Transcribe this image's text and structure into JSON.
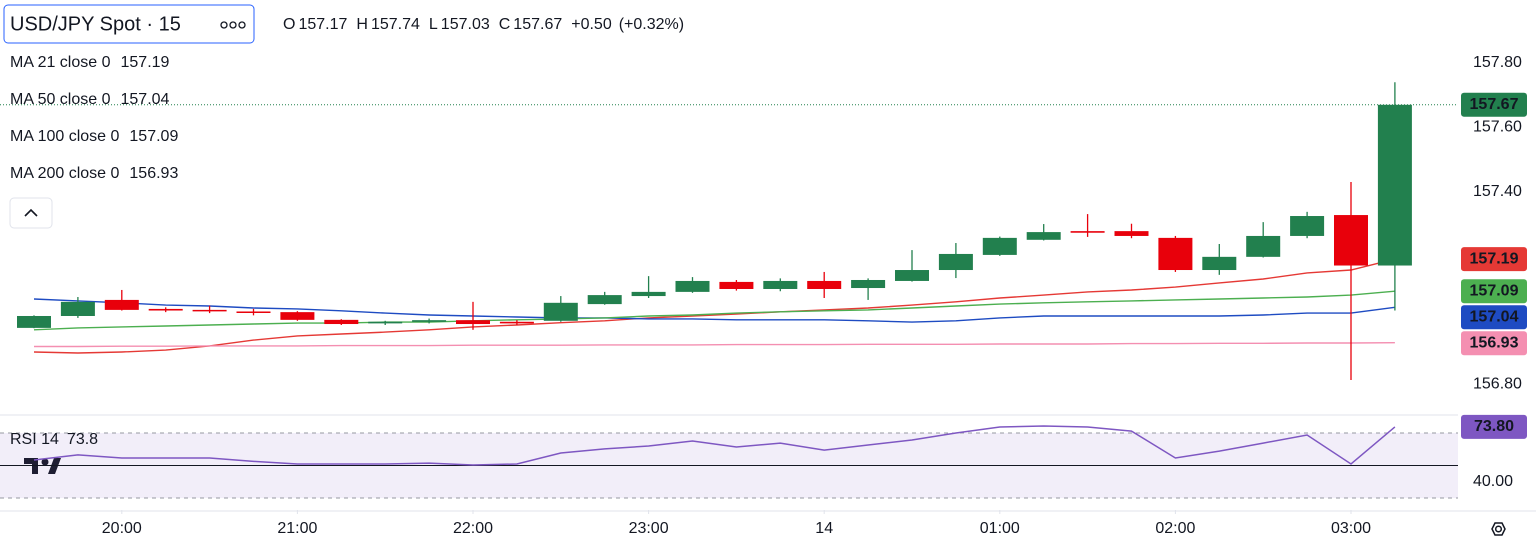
{
  "chart_data": {
    "type": "candlestick",
    "title": "USD/JPY Spot · 15",
    "ohlc_labels": [
      "O",
      "H",
      "L",
      "C"
    ],
    "change": "+0.50",
    "change_pct": "(+0.32%)",
    "categories": [
      null,
      null,
      null,
      null,
      null,
      null,
      null,
      null,
      null,
      null,
      null,
      null,
      null,
      null,
      null,
      null,
      null,
      null,
      null,
      null,
      null,
      null,
      null,
      null,
      null,
      null,
      null,
      null,
      null,
      null,
      null,
      null
    ],
    "open": [
      156.976,
      157.013,
      157.063,
      157.035,
      157.032,
      157.027,
      157.025,
      157.001,
      156.99,
      156.995,
      157.0,
      156.995,
      156.998,
      157.05,
      157.075,
      157.088,
      157.119,
      157.097,
      157.122,
      157.1,
      157.122,
      157.156,
      157.203,
      157.25,
      157.277,
      157.277,
      157.256,
      157.156,
      157.197,
      157.262,
      157.327,
      157.17
    ],
    "high": [
      157.015,
      157.072,
      157.094,
      157.04,
      157.045,
      157.035,
      157.028,
      157.003,
      156.998,
      157.005,
      157.057,
      157.0,
      157.075,
      157.088,
      157.137,
      157.134,
      157.125,
      157.13,
      157.15,
      157.13,
      157.218,
      157.24,
      157.26,
      157.299,
      157.33,
      157.3,
      157.262,
      157.237,
      157.305,
      157.337,
      157.43,
      157.74
    ],
    "low": [
      156.975,
      157.007,
      157.03,
      157.025,
      157.022,
      157.015,
      156.998,
      156.985,
      156.985,
      156.99,
      156.97,
      156.985,
      156.995,
      157.048,
      157.069,
      157.085,
      157.092,
      157.09,
      157.069,
      157.063,
      157.12,
      157.131,
      157.2,
      157.248,
      157.259,
      157.255,
      157.15,
      157.141,
      157.195,
      157.255,
      156.814,
      157.03
    ],
    "close": [
      157.013,
      157.057,
      157.032,
      157.03,
      157.028,
      157.025,
      157.001,
      156.988,
      156.995,
      157.0,
      156.988,
      156.99,
      157.054,
      157.078,
      157.088,
      157.122,
      157.097,
      157.122,
      157.097,
      157.125,
      157.156,
      157.206,
      157.256,
      157.274,
      157.272,
      157.262,
      157.156,
      157.197,
      157.262,
      157.324,
      157.17,
      157.67
    ],
    "up_color": "#22804e",
    "down_color": "#e8000b",
    "series": [
      {
        "name": "MA 21 close 0",
        "color": "#e53935",
        "values": [
          156.901,
          156.898,
          156.901,
          156.907,
          156.92,
          156.938,
          156.951,
          156.957,
          156.963,
          156.97,
          156.979,
          156.985,
          156.992,
          156.998,
          157.007,
          157.013,
          157.019,
          157.026,
          157.032,
          157.038,
          157.047,
          157.057,
          157.069,
          157.078,
          157.088,
          157.094,
          157.103,
          157.116,
          157.128,
          157.147,
          157.156,
          157.19
        ]
      },
      {
        "name": "MA 50 close 0",
        "color": "#1e4bc2",
        "values": [
          157.066,
          157.06,
          157.054,
          157.047,
          157.044,
          157.038,
          157.035,
          157.029,
          157.022,
          157.016,
          157.013,
          157.01,
          157.007,
          157.007,
          157.004,
          157.004,
          157.001,
          157.001,
          157.001,
          156.998,
          156.994,
          156.998,
          157.007,
          157.013,
          157.013,
          157.013,
          157.013,
          157.013,
          157.016,
          157.022,
          157.022,
          157.04
        ]
      },
      {
        "name": "MA 100 close 0",
        "color": "#4caf50",
        "values": [
          156.97,
          156.976,
          156.979,
          156.982,
          156.985,
          156.988,
          156.991,
          156.991,
          156.994,
          156.994,
          156.998,
          157.001,
          157.004,
          157.007,
          157.013,
          157.016,
          157.022,
          157.026,
          157.029,
          157.032,
          157.038,
          157.044,
          157.05,
          157.054,
          157.057,
          157.06,
          157.063,
          157.066,
          157.069,
          157.072,
          157.078,
          157.09
        ]
      },
      {
        "name": "MA 200 close 0",
        "color": "#f48fb1",
        "values": [
          156.918,
          156.918,
          156.919,
          156.919,
          156.92,
          156.92,
          156.92,
          156.921,
          156.921,
          156.921,
          156.922,
          156.922,
          156.922,
          156.923,
          156.923,
          156.923,
          156.924,
          156.924,
          156.924,
          156.925,
          156.925,
          156.925,
          156.926,
          156.926,
          156.926,
          156.927,
          156.927,
          156.928,
          156.928,
          156.929,
          156.929,
          156.93
        ]
      }
    ],
    "ylim": [
      156.705,
      157.996
    ],
    "yticks": [
      {
        "value": 157.8,
        "label": "157.80"
      },
      {
        "value": 157.6,
        "label": "157.60"
      },
      {
        "value": 157.4,
        "label": "157.40"
      },
      {
        "value": 156.8,
        "label": "156.80"
      }
    ],
    "xticks": [
      {
        "value": 2,
        "label": "20:00"
      },
      {
        "value": 6,
        "label": "21:00"
      },
      {
        "value": 10,
        "label": "22:00"
      },
      {
        "value": 14,
        "label": "23:00"
      },
      {
        "value": 18,
        "label": "14"
      },
      {
        "value": 22,
        "label": "01:00"
      },
      {
        "value": 26,
        "label": "02:00"
      },
      {
        "value": 30,
        "label": "03:00"
      }
    ],
    "rsi": {
      "name": "RSI 14",
      "color": "#7e57c2",
      "values": [
        53.4,
        56.5,
        54.6,
        54.6,
        54.6,
        52.5,
        50.9,
        50.9,
        50.9,
        51.5,
        50.3,
        50.9,
        57.7,
        60.2,
        62.0,
        65.1,
        61.4,
        63.8,
        59.5,
        62.6,
        65.7,
        70.0,
        73.7,
        74.3,
        73.7,
        71.2,
        54.6,
        58.9,
        63.8,
        68.8,
        50.9,
        73.8
      ],
      "current_label": "73.80",
      "ylim": [
        22.6,
        81.1
      ],
      "yticks": [
        {
          "value": 40,
          "label": "40.00"
        }
      ],
      "levels": [
        70,
        50,
        30
      ]
    }
  }
}
